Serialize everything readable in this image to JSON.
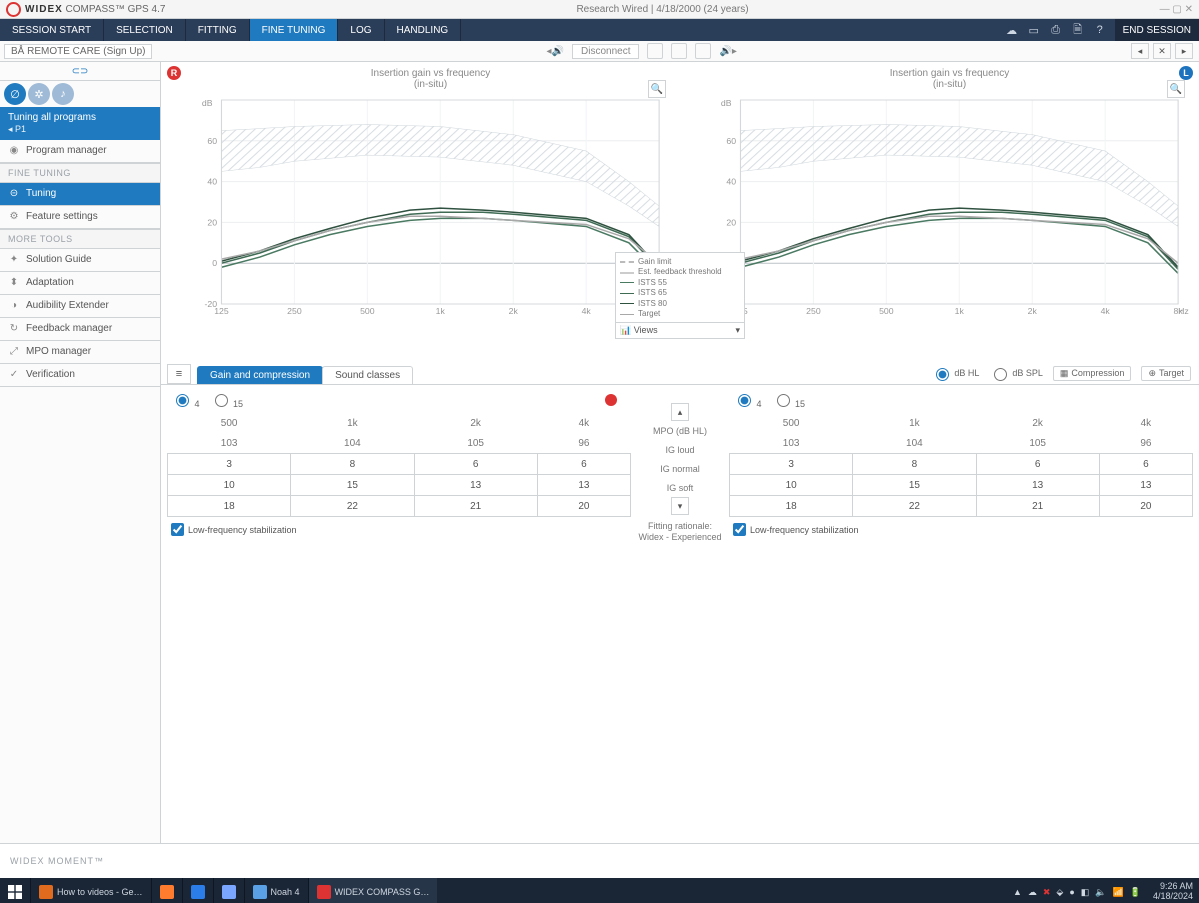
{
  "titlebar": {
    "brand_prefix": "WIDEX",
    "brand_rest": " COMPASS™ GPS 4.7",
    "center": "Research Wired  |  4/18/2000  (24 years)"
  },
  "nav": {
    "tabs": [
      {
        "label": "SESSION START",
        "active": false
      },
      {
        "label": "SELECTION",
        "active": false
      },
      {
        "label": "FITTING",
        "active": false
      },
      {
        "label": "FINE TUNING",
        "active": true
      },
      {
        "label": "LOG",
        "active": false
      },
      {
        "label": "HANDLING",
        "active": false
      }
    ],
    "end": "END SESSION"
  },
  "subbar": {
    "remote": "BÅ  REMOTE CARE (Sign Up)",
    "disconnect": "Disconnect"
  },
  "sidebar": {
    "link": "⊂⊃",
    "tuning_all": "Tuning all programs",
    "tuning_sub": "◂ P1",
    "program_manager": "Program manager",
    "head_ft": "FINE TUNING",
    "tuning": "Tuning",
    "feature": "Feature settings",
    "head_mt": "MORE TOOLS",
    "tools": [
      {
        "icon": "✦",
        "label": "Solution Guide"
      },
      {
        "icon": "⬍",
        "label": "Adaptation"
      },
      {
        "icon": "◑",
        "label": "Audibility Extender"
      },
      {
        "icon": "↻",
        "label": "Feedback manager"
      },
      {
        "icon": "⤢",
        "label": "MPO manager"
      },
      {
        "icon": "✓",
        "label": "Verification"
      }
    ]
  },
  "charts": {
    "title": "Insertion gain vs frequency",
    "subtitle": "(in-situ)",
    "ylabel": "dB",
    "xlabel": "Hz",
    "yticks": [
      -20,
      0,
      20,
      40,
      60
    ],
    "ytick_labels": [
      "-20",
      "0",
      "20",
      "40",
      "60"
    ],
    "xticks": [
      125,
      250,
      500,
      1000,
      2000,
      4000,
      8000
    ],
    "xtick_labels": [
      "125",
      "250",
      "500",
      "1k",
      "2k",
      "4k",
      "8k"
    ],
    "ylim": [
      -20,
      80
    ],
    "hatch_top": [
      65,
      66,
      67,
      68,
      67,
      63,
      55,
      40,
      28
    ],
    "hatch_bot": [
      45,
      47,
      50,
      53,
      52,
      48,
      40,
      28,
      18
    ],
    "lines": {
      "ists55": {
        "color": "#4a7a62",
        "pts": [
          -2,
          3,
          9,
          14,
          18,
          21,
          22,
          22,
          21,
          18,
          10,
          -5
        ]
      },
      "ists65": {
        "color": "#3f6b55",
        "pts": [
          0,
          5,
          11,
          16,
          20,
          24,
          25,
          25,
          24,
          21,
          13,
          -3
        ]
      },
      "ists80": {
        "color": "#2f5140",
        "pts": [
          1,
          6,
          12,
          17,
          22,
          26,
          27,
          26,
          25,
          22,
          14,
          -2
        ]
      },
      "target": {
        "color": "#a8a8a8",
        "pts": [
          2,
          6,
          11,
          16,
          20,
          23,
          23,
          22,
          21,
          19,
          12,
          0
        ]
      }
    },
    "legend": [
      "Gain limit",
      "Est. feedback threshold",
      "ISTS 55",
      "ISTS 65",
      "ISTS 80",
      "Target"
    ],
    "views": "Views"
  },
  "tabs2": {
    "gc": "Gain and compression",
    "sc": "Sound classes"
  },
  "rightopts": {
    "dbhl": "dB HL",
    "dbspl": "dB SPL",
    "comp": "Compression",
    "target": "Target"
  },
  "radios": {
    "step4": "4",
    "step15": "15"
  },
  "table": {
    "headers": [
      "500",
      "1k",
      "2k",
      "4k"
    ],
    "mpo": [
      "103",
      "104",
      "105",
      "96"
    ],
    "loud": [
      "3",
      "8",
      "6",
      "6"
    ],
    "normal": [
      "10",
      "15",
      "13",
      "13"
    ],
    "soft": [
      "18",
      "22",
      "21",
      "20"
    ]
  },
  "tableR": {
    "headers": [
      "500",
      "1k",
      "2k",
      "4k"
    ],
    "mpo": [
      "103",
      "104",
      "105",
      "96"
    ],
    "loud": [
      "3",
      "8",
      "6",
      "6"
    ],
    "normal": [
      "10",
      "15",
      "13",
      "13"
    ],
    "soft": [
      "18",
      "22",
      "21",
      "20"
    ]
  },
  "midlabels": {
    "mpo": "MPO (dB HL)",
    "loud": "IG loud",
    "normal": "IG normal",
    "soft": "IG soft"
  },
  "lfs": "Low-frequency stabilization",
  "rationale": {
    "l1": "Fitting rationale:",
    "l2": "Widex - Experienced"
  },
  "footer": "WIDEX MOMENT™",
  "taskbar": {
    "items": [
      {
        "icon": "#e06b1f",
        "label": "How to videos - Ge…"
      },
      {
        "icon": "#ff7b2d",
        "label": ""
      },
      {
        "icon": "#2b7de9",
        "label": ""
      },
      {
        "icon": "#7aa6ff",
        "label": ""
      },
      {
        "icon": "#5aa0e6",
        "label": "Noah 4"
      },
      {
        "icon": "#d33",
        "label": "WIDEX COMPASS G…",
        "active": true
      }
    ],
    "tray": [
      "▲",
      "☁",
      "✖",
      "⬙",
      "●",
      "◧",
      "🔈",
      "📶",
      "🔋"
    ],
    "time": "9:26 AM",
    "date": "4/18/2024"
  }
}
